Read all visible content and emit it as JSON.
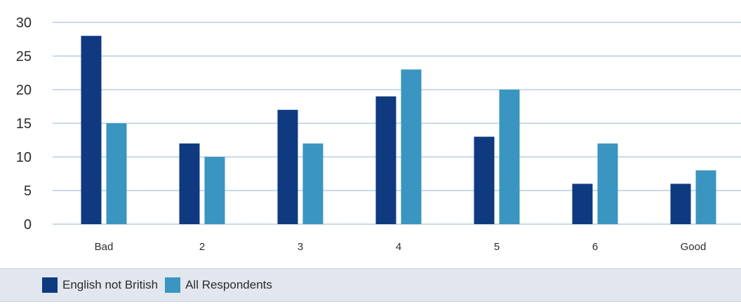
{
  "chart_data": {
    "type": "bar",
    "categories": [
      "Bad",
      "2",
      "3",
      "4",
      "5",
      "6",
      "Good"
    ],
    "series": [
      {
        "name": "English not British",
        "color": "#0f3a80",
        "values": [
          28,
          12,
          17,
          19,
          13,
          6,
          6
        ]
      },
      {
        "name": "All Respondents",
        "color": "#3a95c0",
        "values": [
          15,
          10,
          12,
          23,
          20,
          12,
          8
        ]
      }
    ],
    "y_ticks": [
      0,
      5,
      10,
      15,
      20,
      25,
      30
    ],
    "ylim": [
      0,
      30
    ],
    "title": "",
    "xlabel": "",
    "ylabel": "",
    "grid": true,
    "gridline_color": "#a9c3da",
    "legend_position": "bottom"
  }
}
